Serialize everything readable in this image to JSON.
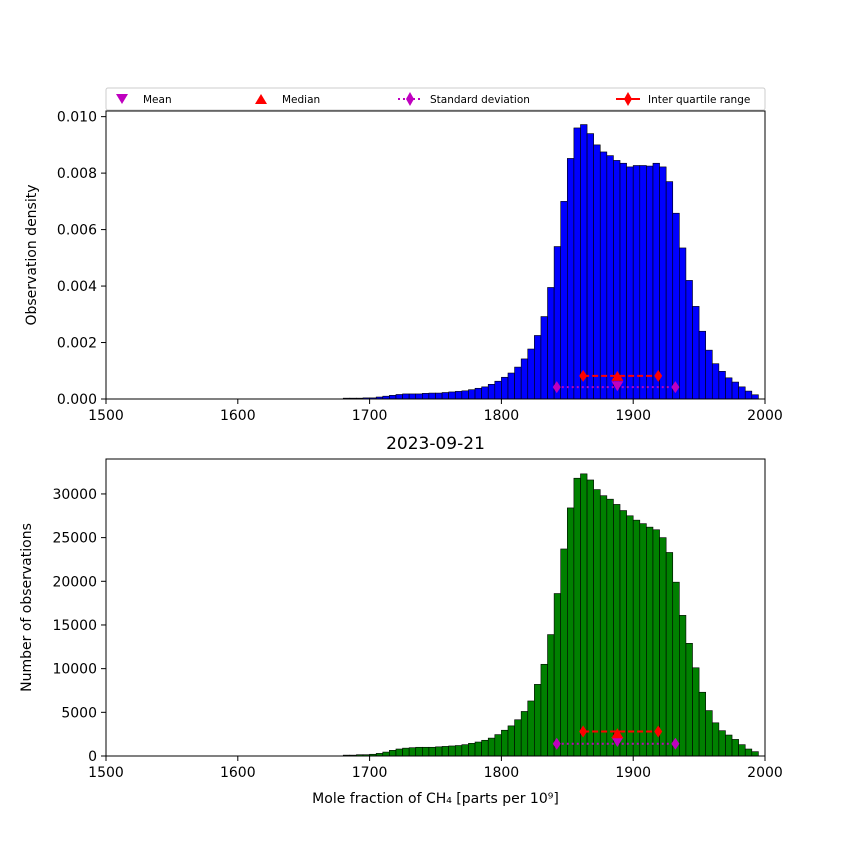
{
  "colors": {
    "density_bars": "#0000ff",
    "count_bars": "#008000",
    "bar_edge": "#000000",
    "mean": "#bf00bf",
    "median": "#ff0000",
    "std": "#bf00bf",
    "iqr": "#ff0000"
  },
  "legend": {
    "placement": "top",
    "entries": [
      {
        "label": "Mean",
        "marker": "triangle-down",
        "color": "#bf00bf"
      },
      {
        "label": "Median",
        "marker": "triangle-up",
        "color": "#ff0000"
      },
      {
        "label": "Standard deviation",
        "marker": "diamond-dotted",
        "color": "#bf00bf"
      },
      {
        "label": "Inter quartile range",
        "marker": "diamond-dashed",
        "color": "#ff0000"
      }
    ]
  },
  "chart_data": [
    {
      "type": "bar",
      "title": "",
      "xlabel": "",
      "ylabel": "Observation density",
      "xlim": [
        1500,
        2000
      ],
      "ylim": [
        0,
        0.0102
      ],
      "xticks": [
        "1500",
        "1600",
        "1700",
        "1800",
        "1900",
        "2000"
      ],
      "yticks": [
        "0.000",
        "0.002",
        "0.004",
        "0.006",
        "0.008",
        "0.010"
      ],
      "bin_start": 1680,
      "bin_width": 5,
      "values": [
        3e-05,
        3e-05,
        3e-05,
        4e-05,
        4e-05,
        7e-05,
        0.0001,
        0.00013,
        0.00016,
        0.00018,
        0.00018,
        0.00018,
        0.0002,
        0.00021,
        0.00021,
        0.00023,
        0.00025,
        0.00027,
        0.00029,
        0.00033,
        0.00038,
        0.00043,
        0.00052,
        0.00063,
        0.00077,
        0.00092,
        0.00113,
        0.00142,
        0.00177,
        0.00225,
        0.00292,
        0.00395,
        0.0054,
        0.007,
        0.00852,
        0.0096,
        0.00972,
        0.0094,
        0.009,
        0.00875,
        0.00862,
        0.00845,
        0.00835,
        0.00822,
        0.00827,
        0.00827,
        0.00825,
        0.00835,
        0.00822,
        0.0077,
        0.00658,
        0.00535,
        0.0042,
        0.00328,
        0.0024,
        0.00173,
        0.00125,
        0.00098,
        0.00075,
        0.0006,
        0.00043,
        0.00028,
        0.00015
      ],
      "stats": {
        "mean": 1888,
        "median": 1888,
        "std_range": [
          1842,
          1932
        ],
        "iqr_range": [
          1862,
          1919
        ],
        "mean_y": 0.00045,
        "median_y": 0.00082,
        "std_y": 0.00042,
        "iqr_y": 0.00082
      }
    },
    {
      "type": "bar",
      "title": "2023-09-21",
      "xlabel": "Mole fraction of CH₄ [parts per 10⁹]",
      "ylabel": "Number of observations",
      "xlim": [
        1500,
        2000
      ],
      "ylim": [
        0,
        34000
      ],
      "xticks": [
        "1500",
        "1600",
        "1700",
        "1800",
        "1900",
        "2000"
      ],
      "yticks": [
        "0",
        "5000",
        "10000",
        "15000",
        "20000",
        "25000",
        "30000"
      ],
      "bin_start": 1680,
      "bin_width": 5,
      "values": [
        100,
        100,
        150,
        150,
        200,
        300,
        450,
        650,
        800,
        900,
        950,
        1000,
        1000,
        1000,
        1050,
        1100,
        1150,
        1200,
        1300,
        1450,
        1600,
        1800,
        2050,
        2450,
        2950,
        3450,
        4150,
        5100,
        6300,
        8200,
        10500,
        13900,
        18600,
        23700,
        28400,
        31800,
        32300,
        31600,
        30500,
        29800,
        29400,
        28800,
        28100,
        27500,
        27000,
        26600,
        26200,
        25900,
        25000,
        23300,
        19900,
        16100,
        12900,
        10100,
        7300,
        5200,
        3800,
        2900,
        2400,
        1900,
        1300,
        800,
        500
      ],
      "stats": {
        "mean": 1888,
        "median": 1888,
        "std_range": [
          1842,
          1932
        ],
        "iqr_range": [
          1862,
          1919
        ],
        "mean_y": 1600,
        "median_y": 2600,
        "std_y": 1400,
        "iqr_y": 2800
      }
    }
  ]
}
